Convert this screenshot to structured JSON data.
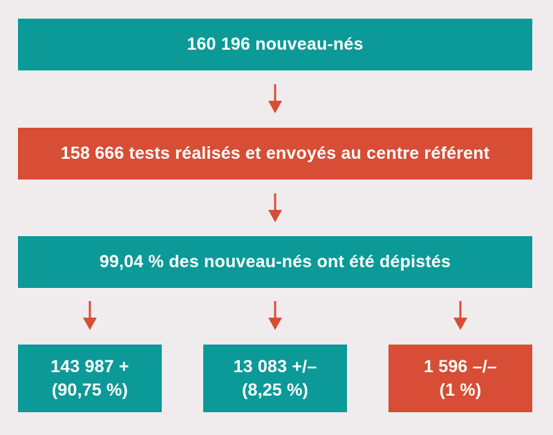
{
  "colors": {
    "background": "#f0eced",
    "teal": "#0b9a98",
    "red": "#d74d35",
    "text": "#ffffff"
  },
  "nodes": {
    "newborns": {
      "label": "160 196 nouveau-nés"
    },
    "tests": {
      "label": "158 666 tests réalisés et envoyés au centre référent"
    },
    "screened": {
      "label": "99,04 % des nouveau-nés ont été dépistés"
    },
    "positive": {
      "line1": "143 987 +",
      "line2": "(90,75 %)"
    },
    "intermediate": {
      "line1": "13 083 +/–",
      "line2": "(8,25 %)"
    },
    "negative": {
      "line1": "1 596 –/–",
      "line2": "(1 %)"
    }
  },
  "edges": [
    {
      "from": "newborns",
      "to": "tests"
    },
    {
      "from": "tests",
      "to": "screened"
    },
    {
      "from": "screened",
      "to": "positive"
    },
    {
      "from": "screened",
      "to": "intermediate"
    },
    {
      "from": "screened",
      "to": "negative"
    }
  ]
}
